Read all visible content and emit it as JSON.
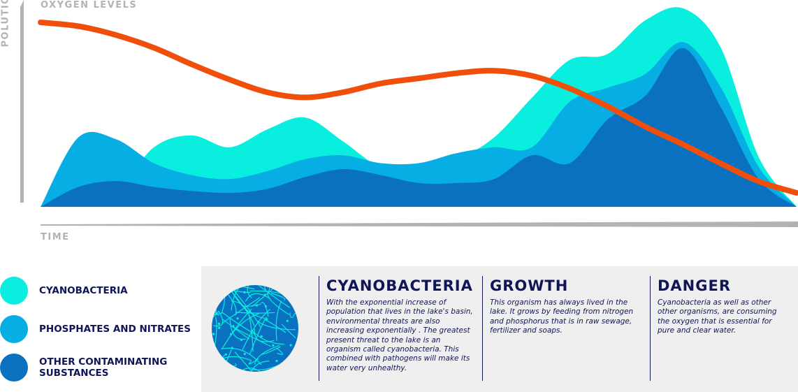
{
  "axes": {
    "y_top": "OXYGEN LEVELS",
    "y_side": "POLUTION",
    "x": "TIME"
  },
  "chart_data": {
    "type": "area",
    "x": [
      0,
      5,
      10,
      15,
      20,
      25,
      30,
      35,
      40,
      45,
      50,
      55,
      60,
      65,
      70,
      75,
      80,
      85,
      90,
      95,
      100
    ],
    "series": [
      {
        "name": "CYANOBACTERIA",
        "color": "#0aeedf",
        "values": [
          0,
          6,
          8,
          30,
          36,
          30,
          39,
          45,
          33,
          20,
          20,
          24,
          35,
          55,
          74,
          77,
          94,
          100,
          80,
          25,
          0
        ]
      },
      {
        "name": "PHOSPHATES AND NITRATES",
        "color": "#07aee4",
        "values": [
          0,
          35,
          34,
          22,
          16,
          14,
          18,
          24,
          26,
          22,
          22,
          27,
          30,
          30,
          53,
          60,
          67,
          83,
          60,
          20,
          0
        ]
      },
      {
        "name": "OTHER CONTAMINATING SUBSTANCES",
        "color": "#0a70c0",
        "values": [
          0,
          10,
          13,
          10,
          8,
          7,
          9,
          15,
          19,
          16,
          12,
          12,
          14,
          26,
          22,
          44,
          56,
          80,
          50,
          14,
          0
        ]
      }
    ],
    "line_series": {
      "color": "#f04e0b",
      "values": [
        100,
        97,
        90,
        80,
        67,
        55,
        45,
        41,
        45,
        52,
        56,
        60,
        62,
        58,
        48,
        34,
        18,
        4,
        -11,
        -25,
        -34
      ]
    },
    "ylim": [
      -40,
      110
    ],
    "xlim": [
      0,
      100
    ],
    "grid": false
  },
  "legend": [
    {
      "label": "CYANOBACTERIA",
      "color": "#0aeedf"
    },
    {
      "label": "PHOSPHATES AND NITRATES",
      "color": "#07aee4"
    },
    {
      "label": "OTHER CONTAMINATING SUBSTANCES",
      "color": "#0a70c0"
    }
  ],
  "info": [
    {
      "title": "CYANOBACTERIA",
      "body": "With the exponential increase of population that lives in the lake's basin, environmental threats are also increasing exponentially . The greatest present threat to the lake is an organism called cyanobacteria.  This combined with pathogens will make its water very unhealthy."
    },
    {
      "title": "GROWTH",
      "body": "This organism has always lived in the lake. It grows by feeding from nitrogen and phosphorus that is in raw sewage, fertilizer and soaps."
    },
    {
      "title": "DANGER",
      "body": "Cyanobacteria as well as other other organisms, are consuming the oxygen that is essential for pure and clear water."
    }
  ],
  "colors": {
    "oxygen_line": "#f04e0b",
    "axis": "#b3b3b3",
    "text_dark": "#0f1557",
    "panel_bg": "#efefef",
    "circle_bg": "#0a70c0",
    "circle_filaments": "#0aeedf"
  }
}
